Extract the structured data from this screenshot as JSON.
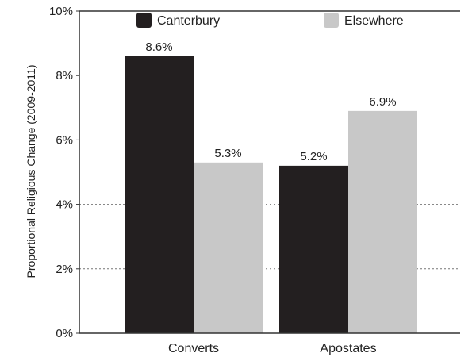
{
  "chart_data": {
    "type": "bar",
    "title": "",
    "xlabel": "",
    "ylabel": "Proportional Religious Change (2009-2011)",
    "categories": [
      "Converts",
      "Apostates"
    ],
    "series": [
      {
        "name": "Canterbury",
        "values": [
          8.6,
          5.2
        ],
        "color": "#231f20",
        "labels": [
          "8.6%",
          "5.2%"
        ]
      },
      {
        "name": "Elsewhere",
        "values": [
          5.3,
          6.9
        ],
        "color": "#c8c8c8",
        "labels": [
          "5.3%",
          "6.9%"
        ]
      }
    ],
    "ylim": [
      0,
      10
    ],
    "yticks": [
      {
        "value": 0,
        "label": "0%"
      },
      {
        "value": 2,
        "label": "2%"
      },
      {
        "value": 4,
        "label": "4%"
      },
      {
        "value": 6,
        "label": "6%"
      },
      {
        "value": 8,
        "label": "8%"
      },
      {
        "value": 10,
        "label": "10%"
      }
    ],
    "grid": "dotted horizontal at 2% and 4%",
    "legend": "top"
  }
}
